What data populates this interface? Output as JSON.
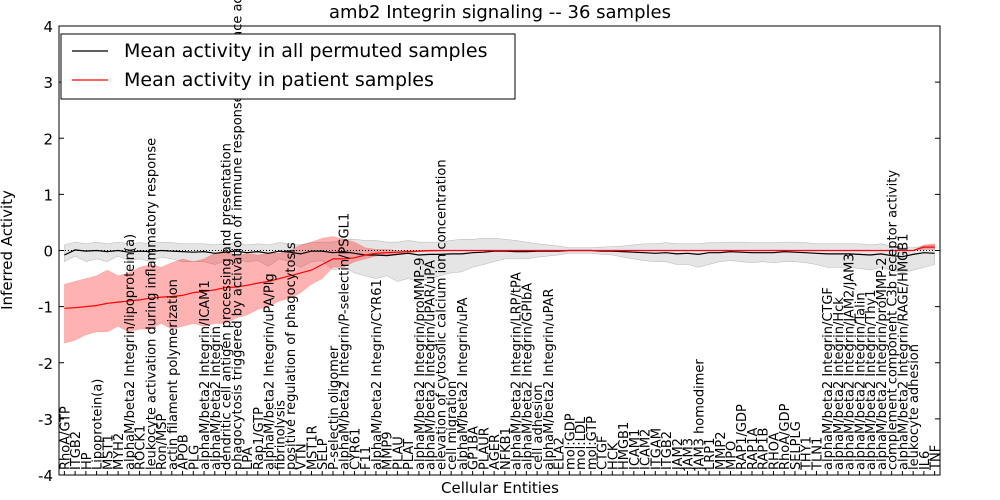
{
  "chart_data": {
    "type": "line",
    "title": "amb2 Integrin signaling -- 36 samples",
    "xlabel": "Cellular Entities",
    "ylabel": "Inferred Activity",
    "ylim": [
      -4,
      4
    ],
    "yticks": [
      -4,
      -3,
      -2,
      -1,
      0,
      1,
      2,
      3,
      4
    ],
    "legend": {
      "placement": "top-left",
      "entries": [
        {
          "label": "Mean activity in all permuted samples",
          "color": "#000000"
        },
        {
          "label": "Mean activity in patient samples",
          "color": "#ff0000"
        }
      ]
    },
    "categories": [
      "RhoA/GTP",
      "ITGB2",
      "HP",
      "Lipoprotein(a)",
      "MST1",
      "MYH2",
      "alphaM/beta2 Integrin/lipoprotein(a)",
      "ROCK1",
      "leukocyte activation during inflammatory response",
      "Ron/MSP",
      "actin filament polymerization",
      "APOB",
      "PLG",
      "alphaM/beta2 Integrin/ICAM1",
      "alphaM/beta2 Integrin",
      "dendritic cell antigen processing and presentation",
      "phagocytosis triggered by activation of immune response cell surface activating receptor",
      "LPA",
      "Rap1/GTP",
      "alphaM/beta2 Integrin/uPA/Plg",
      "fibrinolysis",
      "positive regulation of phagocytosis",
      "VTN",
      "MST1R",
      "SELP",
      "P-selectin oligomer",
      "alphaM/beta2 Integrin/P-selectin/PSGL1",
      "CYR61",
      "F11",
      "alphaM/beta2 Integrin/CYR61",
      "MMP9",
      "PLAU",
      "PLAT",
      "alphaM/beta2 Integrin/proMMP-9",
      "alphaM/beta2 Integrin/uPAR/uPA",
      "elevation of cytosolic calcium ion concentration",
      "cell migration",
      "alphaM/beta2 Integrin/uPA",
      "GP1BA",
      "PLAUR",
      "AGER",
      "NFKB1",
      "alphaM/beta2 Integrin/LRP/tPA",
      "alphaM/beta2 Integrin/GPIbA",
      "cell adhesion",
      "alphaM/beta2 Integrin/uPAR",
      "ELA2",
      "mol:GDP",
      "mol:LDL",
      "mol:GTP",
      "CTGF",
      "HCK",
      "HMGB1",
      "ICAM1",
      "ICAM2",
      "ITGAM",
      "ITGB2",
      "JAM2",
      "JAM3",
      "JAM3 homodimer",
      "LRP1",
      "MMP2",
      "MPO",
      "RAP1/GDP",
      "RAP1A",
      "RAP1B",
      "RHOA",
      "RhoA/GDP",
      "SELPLG",
      "THY1",
      "TLN1",
      "alphaM/beta2 Integrin/CTGF",
      "alphaM/beta2 Integrin/Hck",
      "alphaM/beta2 Integrin/JAM2/JAM3",
      "alphaM/beta2 Integrin/Talin",
      "alphaM/beta2 Integrin/Thy1",
      "alphaM/beta2 Integrin/proMMP-2",
      "complement component C3b receptor activity",
      "alphaM/beta2 Integrin/RAGE/HMGB1",
      "leukocyte adhesion",
      "IL6",
      "TNF"
    ],
    "series": [
      {
        "name": "Mean activity in all permuted samples",
        "color": "#000000",
        "values": [
          -0.08,
          0.01,
          -0.01,
          0.0,
          -0.02,
          0.0,
          -0.03,
          -0.01,
          -0.02,
          0.0,
          -0.01,
          -0.02,
          -0.03,
          -0.02,
          -0.05,
          -0.03,
          -0.01,
          -0.04,
          -0.02,
          -0.05,
          -0.01,
          -0.03,
          -0.06,
          -0.01,
          -0.01,
          -0.04,
          -0.02,
          -0.05,
          -0.08,
          -0.08,
          -0.09,
          -0.07,
          -0.05,
          -0.08,
          -0.07,
          -0.07,
          -0.06,
          -0.06,
          -0.04,
          -0.03,
          -0.01,
          -0.01,
          -0.02,
          -0.02,
          -0.01,
          -0.01,
          -0.01,
          0.0,
          0.0,
          0.0,
          -0.01,
          -0.01,
          -0.02,
          -0.03,
          -0.04,
          -0.05,
          -0.04,
          -0.06,
          -0.05,
          -0.07,
          -0.04,
          -0.04,
          -0.02,
          -0.03,
          -0.04,
          -0.04,
          -0.04,
          -0.02,
          -0.03,
          -0.04,
          -0.05,
          -0.06,
          -0.06,
          -0.06,
          -0.07,
          -0.08,
          -0.06,
          -0.09,
          -0.11,
          -0.07,
          -0.04,
          -0.05
        ],
        "band_low": [
          -0.2,
          -0.1,
          -0.2,
          -0.15,
          -0.2,
          -0.1,
          -0.18,
          -0.15,
          -0.2,
          -0.12,
          -0.15,
          -0.2,
          -0.2,
          -0.2,
          -0.25,
          -0.18,
          -0.15,
          -0.2,
          -0.18,
          -0.28,
          -0.15,
          -0.2,
          -0.3,
          -0.2,
          -0.18,
          -0.35,
          -0.3,
          -0.4,
          -0.45,
          -0.5,
          -0.45,
          -0.55,
          -0.5,
          -0.55,
          -0.5,
          -0.45,
          -0.4,
          -0.38,
          -0.3,
          -0.25,
          -0.2,
          -0.15,
          -0.15,
          -0.15,
          -0.12,
          -0.1,
          -0.08,
          -0.05,
          -0.05,
          -0.05,
          -0.07,
          -0.08,
          -0.12,
          -0.15,
          -0.18,
          -0.2,
          -0.2,
          -0.25,
          -0.25,
          -0.3,
          -0.25,
          -0.2,
          -0.18,
          -0.2,
          -0.22,
          -0.2,
          -0.22,
          -0.2,
          -0.2,
          -0.22,
          -0.25,
          -0.3,
          -0.3,
          -0.3,
          -0.32,
          -0.35,
          -0.3,
          -0.35,
          -0.4,
          -0.35,
          -0.3,
          -0.25
        ],
        "band_high": [
          0.1,
          0.15,
          0.12,
          0.15,
          0.12,
          0.15,
          0.12,
          0.14,
          0.12,
          0.15,
          0.14,
          0.12,
          0.12,
          0.12,
          0.1,
          0.12,
          0.14,
          0.1,
          0.12,
          0.1,
          0.14,
          0.12,
          0.1,
          0.14,
          0.15,
          0.15,
          0.2,
          0.2,
          0.18,
          0.18,
          0.15,
          0.15,
          0.18,
          0.15,
          0.15,
          0.15,
          0.18,
          0.2,
          0.2,
          0.22,
          0.22,
          0.2,
          0.18,
          0.15,
          0.12,
          0.1,
          0.08,
          0.05,
          0.05,
          0.05,
          0.06,
          0.07,
          0.08,
          0.1,
          0.12,
          0.12,
          0.14,
          0.12,
          0.12,
          0.12,
          0.14,
          0.14,
          0.15,
          0.15,
          0.14,
          0.14,
          0.14,
          0.15,
          0.15,
          0.14,
          0.12,
          0.12,
          0.12,
          0.12,
          0.12,
          0.1,
          0.12,
          0.08,
          0.05,
          0.05,
          0.08,
          0.1
        ]
      },
      {
        "name": "Mean activity in patient samples",
        "color": "#ff0000",
        "values": [
          -1.03,
          -1.02,
          -1.0,
          -0.98,
          -0.94,
          -0.92,
          -0.9,
          -0.88,
          -0.85,
          -0.83,
          -0.82,
          -0.8,
          -0.75,
          -0.73,
          -0.7,
          -0.66,
          -0.65,
          -0.62,
          -0.58,
          -0.55,
          -0.5,
          -0.45,
          -0.4,
          -0.35,
          -0.25,
          -0.15,
          -0.15,
          -0.13,
          -0.08,
          -0.05,
          -0.04,
          -0.03,
          -0.02,
          -0.01,
          0.0,
          0.0,
          0.0,
          0.0,
          0.0,
          0.0,
          0.0,
          0.0,
          0.0,
          0.0,
          0.0,
          0.0,
          0.0,
          0.0,
          0.0,
          0.0,
          0.0,
          0.0,
          0.0,
          0.0,
          0.0,
          0.0,
          0.0,
          0.0,
          0.0,
          0.0,
          0.0,
          0.0,
          0.0,
          0.0,
          0.0,
          0.0,
          0.0,
          0.0,
          0.0,
          0.0,
          0.0,
          0.0,
          0.0,
          0.0,
          0.0,
          0.0,
          0.0,
          0.0,
          0.0,
          0.0,
          0.06,
          0.06
        ],
        "band_low": [
          -1.65,
          -1.6,
          -1.5,
          -1.45,
          -1.45,
          -1.35,
          -1.45,
          -1.4,
          -1.4,
          -1.3,
          -1.4,
          -1.35,
          -1.3,
          -1.35,
          -1.3,
          -1.3,
          -1.2,
          -1.15,
          -1.05,
          -1.0,
          -0.9,
          -0.85,
          -0.75,
          -0.6,
          -0.5,
          -0.3,
          -0.3,
          -0.2,
          -0.15,
          -0.1,
          -0.08,
          -0.05,
          -0.05,
          -0.02,
          -0.02,
          -0.01,
          0.0,
          0.0,
          0.0,
          0.0,
          0.0,
          0.0,
          0.0,
          0.0,
          0.0,
          0.0,
          0.0,
          0.0,
          0.0,
          0.0,
          0.0,
          0.0,
          0.0,
          0.0,
          0.0,
          0.0,
          0.0,
          0.0,
          0.0,
          0.0,
          0.0,
          0.0,
          0.0,
          0.0,
          0.0,
          0.0,
          0.0,
          0.0,
          0.0,
          0.0,
          0.0,
          0.0,
          0.0,
          0.0,
          0.0,
          0.0,
          0.0,
          0.0,
          0.0,
          0.0,
          0.02,
          0.02
        ],
        "band_high": [
          -0.6,
          -0.55,
          -0.5,
          -0.45,
          -0.35,
          -0.45,
          -0.4,
          -0.3,
          -0.25,
          -0.3,
          -0.22,
          -0.15,
          -0.2,
          -0.15,
          -0.05,
          0.0,
          -0.1,
          -0.05,
          -0.08,
          -0.05,
          -0.05,
          0.0,
          0.1,
          0.15,
          0.22,
          0.25,
          0.2,
          0.15,
          0.05,
          0.02,
          0.02,
          0.0,
          0.0,
          0.0,
          0.0,
          0.0,
          0.0,
          0.0,
          0.0,
          0.0,
          0.0,
          0.0,
          0.0,
          0.0,
          0.0,
          0.0,
          0.0,
          0.0,
          0.0,
          0.0,
          0.0,
          0.0,
          0.0,
          0.0,
          0.0,
          0.0,
          0.0,
          0.0,
          0.0,
          0.0,
          0.0,
          0.0,
          0.0,
          0.0,
          0.0,
          0.0,
          0.0,
          0.0,
          0.0,
          0.0,
          0.0,
          0.0,
          0.0,
          0.0,
          0.0,
          0.0,
          0.0,
          0.0,
          0.0,
          0.0,
          0.1,
          0.12
        ]
      }
    ]
  }
}
